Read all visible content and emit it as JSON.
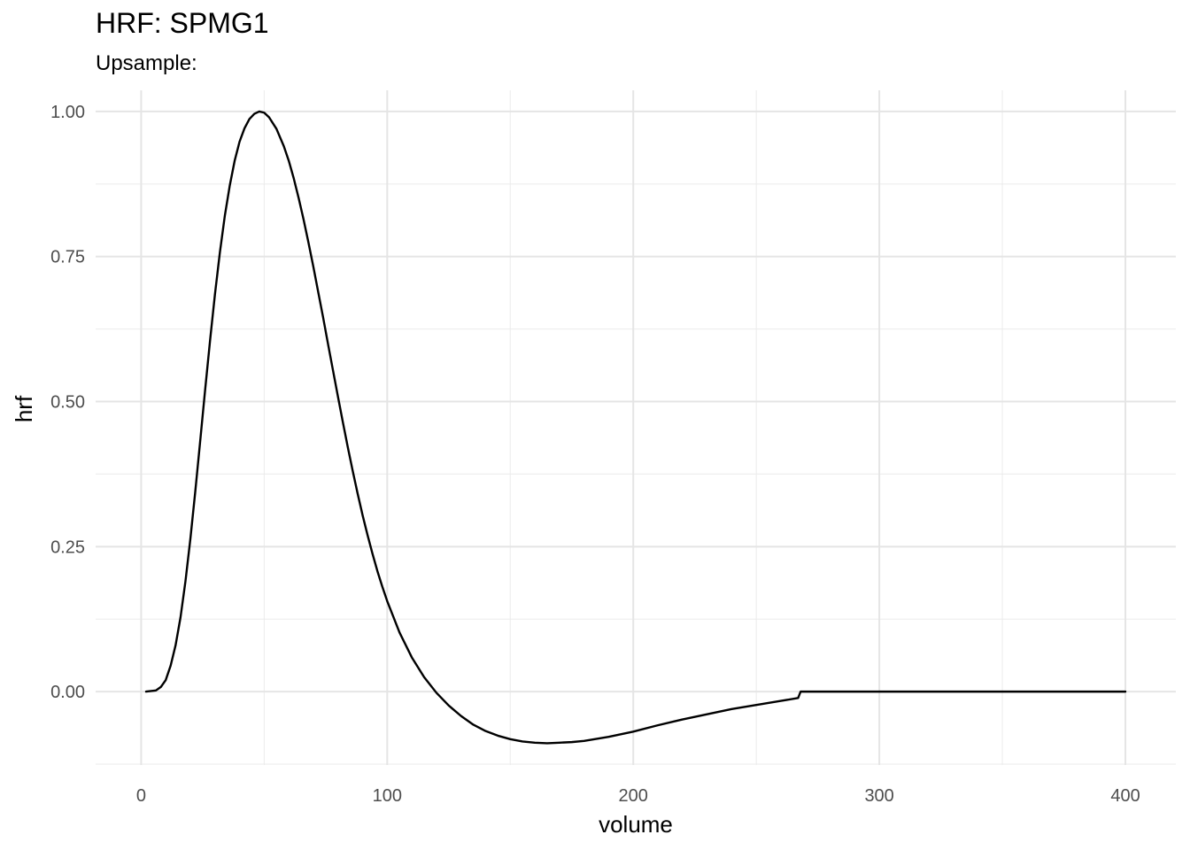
{
  "chart_data": {
    "type": "line",
    "title": "HRF: SPMG1",
    "subtitle": "Upsample:",
    "xlabel": "volume",
    "ylabel": "hrf",
    "xlim": [
      -18.5,
      420.5
    ],
    "ylim": [
      -0.1265,
      1.0365
    ],
    "x_ticks": [
      0,
      100,
      200,
      300,
      400
    ],
    "x_tick_labels": [
      "0",
      "100",
      "200",
      "300",
      "400"
    ],
    "y_ticks": [
      0,
      0.25,
      0.5,
      0.75,
      1
    ],
    "y_tick_labels": [
      "0.00",
      "0.25",
      "0.50",
      "0.75",
      "1.00"
    ],
    "grid": true,
    "series": [
      {
        "color": "#000000",
        "x": [
          2,
          6,
          8,
          10,
          12,
          14,
          16,
          18,
          20,
          22,
          24,
          26,
          28,
          30,
          32,
          34,
          36,
          38,
          40,
          42,
          44,
          46,
          48,
          50,
          52,
          55,
          58,
          60,
          62,
          64,
          66,
          68,
          70,
          72,
          74,
          76,
          78,
          80,
          82,
          84,
          86,
          88,
          90,
          92,
          94,
          96,
          98,
          100,
          105,
          110,
          115,
          120,
          125,
          130,
          135,
          140,
          145,
          150,
          155,
          160,
          165,
          170,
          175,
          180,
          190,
          200,
          210,
          220,
          230,
          240,
          250,
          260,
          267,
          268,
          270,
          280,
          300,
          350,
          400
        ],
        "y": [
          0,
          0.002,
          0.008,
          0.02,
          0.045,
          0.08,
          0.128,
          0.19,
          0.263,
          0.345,
          0.432,
          0.52,
          0.605,
          0.685,
          0.757,
          0.82,
          0.872,
          0.915,
          0.948,
          0.971,
          0.987,
          0.996,
          1.0,
          0.998,
          0.99,
          0.97,
          0.94,
          0.915,
          0.885,
          0.851,
          0.814,
          0.774,
          0.732,
          0.688,
          0.644,
          0.598,
          0.553,
          0.508,
          0.464,
          0.421,
          0.38,
          0.341,
          0.304,
          0.27,
          0.238,
          0.208,
          0.181,
          0.156,
          0.102,
          0.059,
          0.025,
          -0.002,
          -0.024,
          -0.042,
          -0.057,
          -0.068,
          -0.076,
          -0.082,
          -0.086,
          -0.088,
          -0.089,
          -0.088,
          -0.087,
          -0.085,
          -0.078,
          -0.069,
          -0.058,
          -0.048,
          -0.039,
          -0.03,
          -0.023,
          -0.016,
          -0.011,
          0,
          0,
          0,
          0,
          0,
          0
        ]
      }
    ]
  }
}
